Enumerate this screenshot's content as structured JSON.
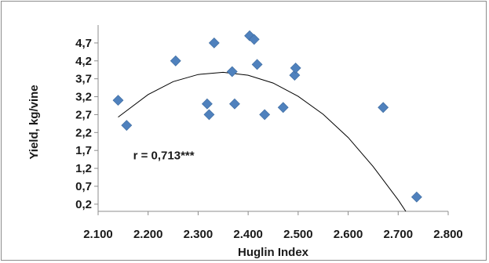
{
  "chart_data": {
    "type": "scatter",
    "title": "",
    "xlabel": "Huglin Index",
    "ylabel": "Yield, kg/vine",
    "xlim": [
      2100,
      2800
    ],
    "ylim": [
      0,
      5.2
    ],
    "x_ticks": [
      2100,
      2200,
      2300,
      2400,
      2500,
      2600,
      2700,
      2800
    ],
    "x_tick_labels": [
      "2.100",
      "2.200",
      "2.300",
      "2.400",
      "2.500",
      "2.600",
      "2.700",
      "2.800"
    ],
    "y_ticks": [
      0.2,
      0.7,
      1.2,
      1.7,
      2.2,
      2.7,
      3.2,
      3.7,
      4.2,
      4.7
    ],
    "y_tick_labels": [
      "0,2",
      "0,7",
      "1,2",
      "1,7",
      "2,2",
      "2,7",
      "3,2",
      "3,7",
      "4,2",
      "4,7"
    ],
    "grid": false,
    "legend": "none",
    "marker_color": "#4f81bd",
    "trend_color": "#000000",
    "points": [
      {
        "x": 2140,
        "y": 3.1
      },
      {
        "x": 2157,
        "y": 2.4
      },
      {
        "x": 2255,
        "y": 4.2
      },
      {
        "x": 2318,
        "y": 3.0
      },
      {
        "x": 2322,
        "y": 2.7
      },
      {
        "x": 2332,
        "y": 4.7
      },
      {
        "x": 2368,
        "y": 3.9
      },
      {
        "x": 2373,
        "y": 3.0
      },
      {
        "x": 2403,
        "y": 4.9
      },
      {
        "x": 2412,
        "y": 4.8
      },
      {
        "x": 2418,
        "y": 4.1
      },
      {
        "x": 2433,
        "y": 2.7
      },
      {
        "x": 2470,
        "y": 2.9
      },
      {
        "x": 2493,
        "y": 3.8
      },
      {
        "x": 2495,
        "y": 4.0
      },
      {
        "x": 2670,
        "y": 2.9
      },
      {
        "x": 2737,
        "y": 0.4
      }
    ],
    "trendline": {
      "type": "polynomial-2",
      "x_range": [
        2140,
        2735
      ],
      "points": [
        {
          "x": 2140,
          "y": 2.63
        },
        {
          "x": 2200,
          "y": 3.26
        },
        {
          "x": 2250,
          "y": 3.62
        },
        {
          "x": 2300,
          "y": 3.82
        },
        {
          "x": 2350,
          "y": 3.88
        },
        {
          "x": 2400,
          "y": 3.8
        },
        {
          "x": 2450,
          "y": 3.58
        },
        {
          "x": 2500,
          "y": 3.21
        },
        {
          "x": 2550,
          "y": 2.71
        },
        {
          "x": 2600,
          "y": 2.06
        },
        {
          "x": 2650,
          "y": 1.25
        },
        {
          "x": 2700,
          "y": 0.32
        },
        {
          "x": 2735,
          "y": -0.42
        }
      ]
    },
    "annotations": [
      {
        "text": "r = 0,713***",
        "x": 2170,
        "y": 1.45
      }
    ]
  }
}
